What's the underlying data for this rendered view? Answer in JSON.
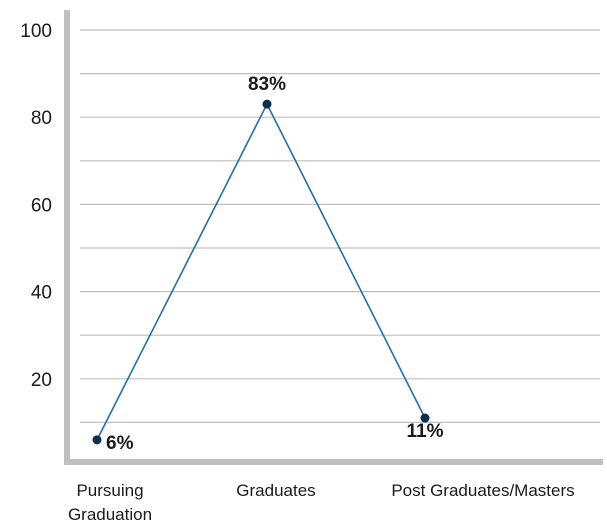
{
  "chart_data": {
    "type": "line",
    "categories": [
      "Pursuing Graduation",
      "Graduates",
      "Post Graduates/Masters"
    ],
    "category_lines": [
      [
        "Pursuing",
        "Graduation"
      ],
      [
        "Graduates"
      ],
      [
        "Post Graduates/Masters"
      ]
    ],
    "series": [
      {
        "values": [
          6,
          83,
          11
        ],
        "labels": [
          "6%",
          "83%",
          "11%"
        ]
      }
    ],
    "yticks": [
      20,
      40,
      60,
      80,
      100
    ],
    "ylim": [
      0,
      100
    ],
    "grid": true,
    "title": "",
    "xlabel": "",
    "ylabel": "",
    "colors": {
      "line": "#1f6fb5",
      "marker": "#0d2f4f",
      "grid": "#bfbfbf",
      "axis": "#bfbfbf"
    }
  }
}
